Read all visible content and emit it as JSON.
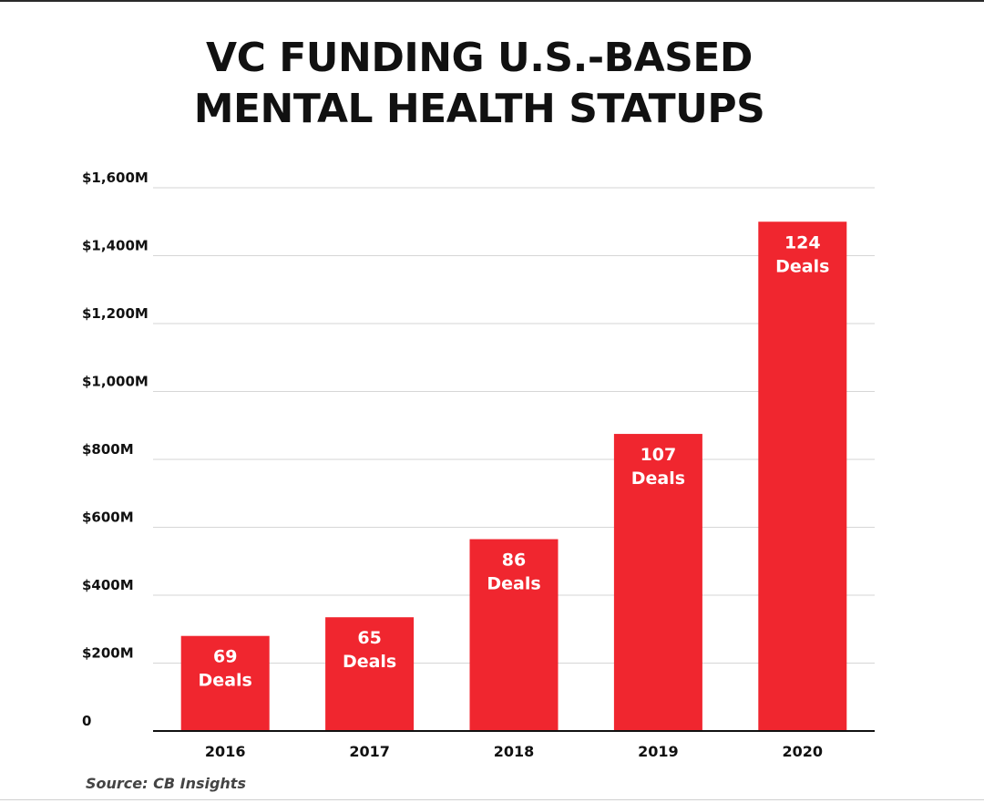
{
  "chart_data": {
    "type": "bar",
    "title_lines": [
      "VC FUNDING U.S.-BASED",
      "MENTAL HEALTH STATUPS"
    ],
    "categories": [
      "2016",
      "2017",
      "2018",
      "2019",
      "2020"
    ],
    "values": [
      280,
      335,
      565,
      875,
      1500
    ],
    "deal_counts": [
      "69",
      "65",
      "86",
      "107",
      "124"
    ],
    "deal_suffix": "Deals",
    "yticks": [
      0,
      200,
      400,
      600,
      800,
      1000,
      1200,
      1400,
      1600
    ],
    "ytick_labels": [
      "0",
      "$200M",
      "$400M",
      "$600M",
      "$800M",
      "$1,000M",
      "$1,200M",
      "$1,400M",
      "$1,600M"
    ],
    "ylim": [
      0,
      1600
    ],
    "xlabel": "",
    "ylabel": "",
    "grid": true,
    "bar_color": "#f0262f",
    "grid_color": "#d6d6d6",
    "axis_color": "#111111"
  },
  "source": "Source: CB Insights"
}
